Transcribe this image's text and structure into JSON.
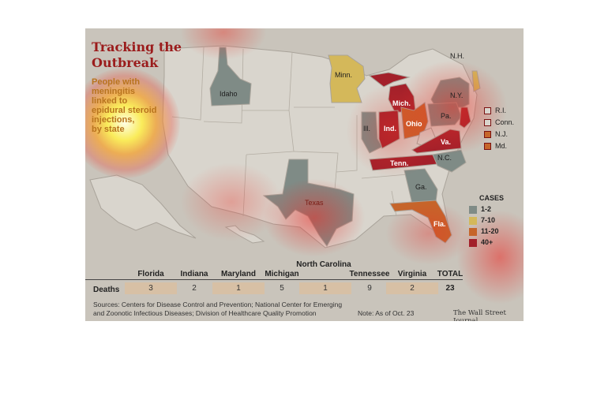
{
  "header": {
    "title_line1": "Tracking the",
    "title_line2": "Outbreak",
    "subtitle_lines": [
      "People with",
      "meningitis",
      "linked to",
      "epidural steroid",
      "injections,",
      "by state"
    ]
  },
  "states": {
    "idaho": "Idaho",
    "minnesota": "Minn.",
    "michigan": "Mich.",
    "ny": "N.Y.",
    "nh": "N.H.",
    "illinois": "Ill.",
    "indiana": "Ind.",
    "ohio": "Ohio",
    "pennsylvania": "Pa.",
    "virginia": "Va.",
    "tennessee": "Tenn.",
    "nc": "N.C.",
    "georgia": "Ga.",
    "florida": "Fla.",
    "texas": "Texas"
  },
  "northeast_labels": [
    "R.I.",
    "Conn.",
    "N.J.",
    "Md."
  ],
  "legend": {
    "title": "CASES",
    "items": [
      {
        "label": "1-2",
        "color": "#7f8b86"
      },
      {
        "label": "7-10",
        "color": "#d4b85a"
      },
      {
        "label": "11-20",
        "color": "#c6652a"
      },
      {
        "label": "40+",
        "color": "#a3202a"
      }
    ]
  },
  "deaths_table": {
    "row_label": "Deaths",
    "columns": [
      {
        "header": "Florida",
        "value": "3"
      },
      {
        "header": "Indiana",
        "value": "2"
      },
      {
        "header": "Maryland",
        "value": "1"
      },
      {
        "header": "Michigan",
        "value": "5"
      },
      {
        "header": "North Carolina",
        "value": "1"
      },
      {
        "header": "Tennessee",
        "value": "9"
      },
      {
        "header": "Virginia",
        "value": "2"
      }
    ],
    "total_header": "TOTAL",
    "total_value": "23"
  },
  "footer": {
    "sources_line1": "Sources: Centers for Disease Control and Prevention; National Center for Emerging",
    "sources_line2": "and Zoonotic Infectious Diseases; Division of Healthcare Quality Promotion",
    "note": "Note: As of Oct. 23",
    "credit": "The Wall Street Journal"
  }
}
